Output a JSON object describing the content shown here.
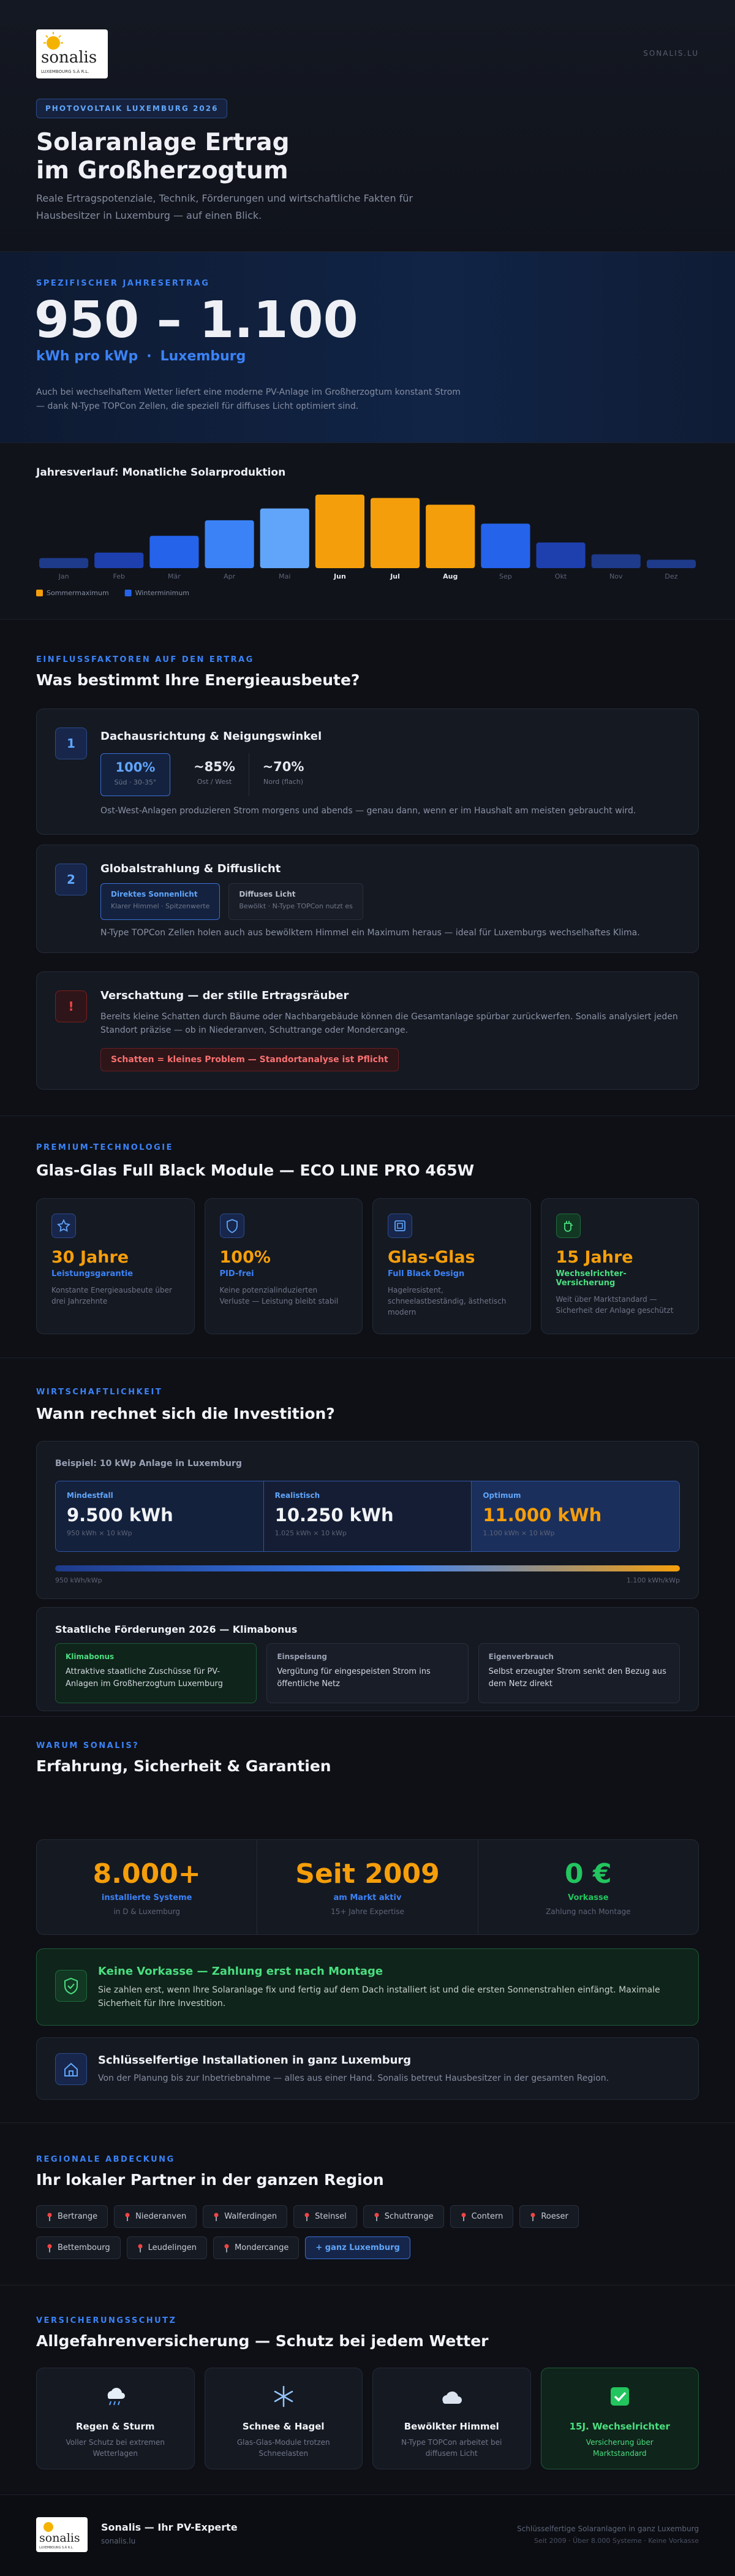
{
  "header": {
    "logo": "sonalis",
    "logo_tagline": "LUXEMBOURG S.À R.L.",
    "site": "SONALIS.LU",
    "badge": "PHOTOVOLTAIK LUXEMBURG 2026",
    "title_lines": [
      "Solaranlage Ertrag",
      "im Großherzogtum"
    ],
    "subtitle": "Reale Ertragspotenziale, Technik, Förderungen und wirtschaftliche Fakten für Hausbesitzer in Luxemburg — auf einen Blick."
  },
  "yield": {
    "label": "SPEZIFISCHER JAHRESERTRAG",
    "value": "950 – 1.100",
    "unit": "kWh pro kWp",
    "separator": "·",
    "region": "Luxemburg",
    "description": "Auch bei wechselhaftem Wetter liefert eine moderne PV-Anlage im Großherzogtum konstant Strom — dank N-Type TOPCon Zellen, die speziell für diffuses Licht optimiert sind."
  },
  "chart_data": {
    "type": "bar",
    "title": "Jahresverlauf: Monatliche Solarproduktion",
    "categories": [
      "Jan",
      "Feb",
      "Mär",
      "Apr",
      "Mai",
      "Jun",
      "Jul",
      "Aug",
      "Sep",
      "Okt",
      "Nov",
      "Dez"
    ],
    "values": [
      24,
      37,
      77,
      114,
      142,
      175,
      167,
      151,
      106,
      61,
      33,
      20
    ],
    "colors": [
      "#1e3a8a",
      "#1e40af",
      "#2563eb",
      "#3b82f6",
      "#60a5fa",
      "#f59e0b",
      "#f59e0b",
      "#f59e0b",
      "#2563eb",
      "#1e40af",
      "#1e3a8a",
      "#1e3a8a"
    ],
    "legend": [
      {
        "name": "Sommermaximum",
        "color": "#f59e0b"
      },
      {
        "name": "Winterminimum",
        "color": "#2563eb"
      }
    ]
  },
  "factors": {
    "label": "EINFLUSSFAKTOREN AUF DEN ERTRAG",
    "heading": "Was bestimmt Ihre Energieausbeute?",
    "cards": [
      {
        "number": "1",
        "title": "Dachausrichtung & Neigungswinkel",
        "stats": [
          {
            "value": "100%",
            "label": "Süd · 30-35°"
          },
          {
            "value": "~85%",
            "label": "Ost / West"
          },
          {
            "value": "~70%",
            "label": "Nord (flach)"
          }
        ],
        "text": "Ost-West-Anlagen produzieren Strom morgens und abends — genau dann, wenn er im Haushalt am meisten gebraucht wird."
      },
      {
        "number": "2",
        "title": "Globalstrahlung & Diffuslicht",
        "boxes": [
          {
            "title": "Direktes Sonnenlicht",
            "text": "Klarer Himmel · Spitzenwerte"
          },
          {
            "title": "Diffuses Licht",
            "text": "Bewölkt · N-Type TOPCon nutzt es"
          }
        ],
        "text": "N-Type TOPCon Zellen holen auch aus bewölktem Himmel ein Maximum heraus — ideal für Luxemburgs wechselhaftes Klima."
      },
      {
        "number": "!",
        "title": "Verschattung — der stille Ertragsräuber",
        "text": "Bereits kleine Schatten durch Bäume oder Nachbargebäude können die Gesamtanlage spürbar zurückwerfen. Sonalis analysiert jeden Standort präzise — ob in Niederanven, Schuttrange oder Mondercange.",
        "callout": "Schatten = kleines Problem — Standortanalyse ist Pflicht"
      }
    ]
  },
  "premium": {
    "label": "PREMIUM-TECHNOLOGIE",
    "heading": "Glas-Glas Full Black Module — ECO LINE PRO 465W",
    "cards": [
      {
        "value": "30 Jahre",
        "title": "Leistungsgarantie",
        "text": "Konstante Energieausbeute über drei Jahrzehnte"
      },
      {
        "value": "100%",
        "title": "PID-frei",
        "text": "Keine potenzialinduzierten Verluste — Leistung bleibt stabil"
      },
      {
        "value": "Glas-Glas",
        "title": "Full Black Design",
        "text": "Hagelresistent, schneelastbeständig, ästhetisch modern"
      },
      {
        "value": "15 Jahre",
        "title": "Wechselrichter-Versicherung",
        "text": "Weit über Marktstandard — Sicherheit der Anlage geschützt"
      }
    ]
  },
  "economics": {
    "label": "WIRTSCHAFTLICHKEIT",
    "heading": "Wann rechnet sich die Investition?",
    "example_title": "Beispiel: 10 kWp Anlage in Luxemburg",
    "scenarios": [
      {
        "name": "Mindestfall",
        "value": "9.500 kWh",
        "detail": "950 kWh × 10 kWp"
      },
      {
        "name": "Realistisch",
        "value": "10.250 kWh",
        "detail": "1.025 kWh × 10 kWp"
      },
      {
        "name": "Optimum",
        "value": "11.000 kWh",
        "detail": "1.100 kWh × 10 kWp"
      }
    ],
    "range_min": "950 kWh/kWp",
    "range_max": "1.100 kWh/kWp",
    "funding": {
      "title": "Staatliche Förderungen 2026 — Klimabonus",
      "items": [
        {
          "title": "Klimabonus",
          "text": "Attraktive staatliche Zuschüsse für PV-Anlagen im Großherzogtum Luxemburg"
        },
        {
          "title": "Einspeisung",
          "text": "Vergütung für eingespeisten Strom ins öffentliche Netz"
        },
        {
          "title": "Eigenverbrauch",
          "text": "Selbst erzeugter Strom senkt den Bezug aus dem Netz direkt"
        }
      ]
    }
  },
  "why": {
    "label": "WARUM SONALIS?",
    "heading": "Erfahrung, Sicherheit & Garantien",
    "stats": [
      {
        "value": "8.000+",
        "label": "installierte Systeme",
        "detail": "in D & Luxemburg"
      },
      {
        "value": "Seit 2009",
        "label": "am Markt aktiv",
        "detail": "15+ Jahre Expertise"
      },
      {
        "value": "0 €",
        "label": "Vorkasse",
        "detail": "Zahlung nach Montage"
      }
    ],
    "cards": [
      {
        "title": "Keine Vorkasse — Zahlung erst nach Montage",
        "text": "Sie zahlen erst, wenn Ihre Solaranlage fix und fertig auf dem Dach installiert ist und die ersten Sonnenstrahlen einfängt. Maximale Sicherheit für Ihre Investition."
      },
      {
        "title": "Schlüsselfertige Installationen in ganz Luxemburg",
        "text": "Von der Planung bis zur Inbetriebnahme — alles aus einer Hand. Sonalis betreut Hausbesitzer in der gesamten Region."
      }
    ]
  },
  "region": {
    "label": "REGIONALE ABDECKUNG",
    "heading": "Ihr lokaler Partner in der ganzen Region",
    "places": [
      "Bertrange",
      "Niederanven",
      "Walferdingen",
      "Steinsel",
      "Schuttrange",
      "Contern",
      "Roeser",
      "Bettembourg",
      "Leudelingen",
      "Mondercange",
      "+ ganz Luxemburg"
    ]
  },
  "insurance": {
    "label": "VERSICHERUNGSSCHUTZ",
    "heading": "Allgefahrenversicherung — Schutz bei jedem Wetter",
    "cards": [
      {
        "title": "Regen & Sturm",
        "text": "Voller Schutz bei extremen Wetterlagen"
      },
      {
        "title": "Schnee & Hagel",
        "text": "Glas-Glas-Module trotzen Schneelasten"
      },
      {
        "title": "Bewölkter Himmel",
        "text": "N-Type TOPCon arbeitet bei diffusem Licht"
      },
      {
        "title": "15J. Wechselrichter",
        "text": "Versicherung über Marktstandard"
      }
    ]
  },
  "footer": {
    "name": "Sonalis — Ihr PV-Experte",
    "site": "sonalis.lu",
    "tagline": "Schlüsselfertige Solaranlagen in ganz Luxemburg",
    "facts": "Seit 2009 · Über 8.000 Systeme · Keine Vorkasse"
  }
}
